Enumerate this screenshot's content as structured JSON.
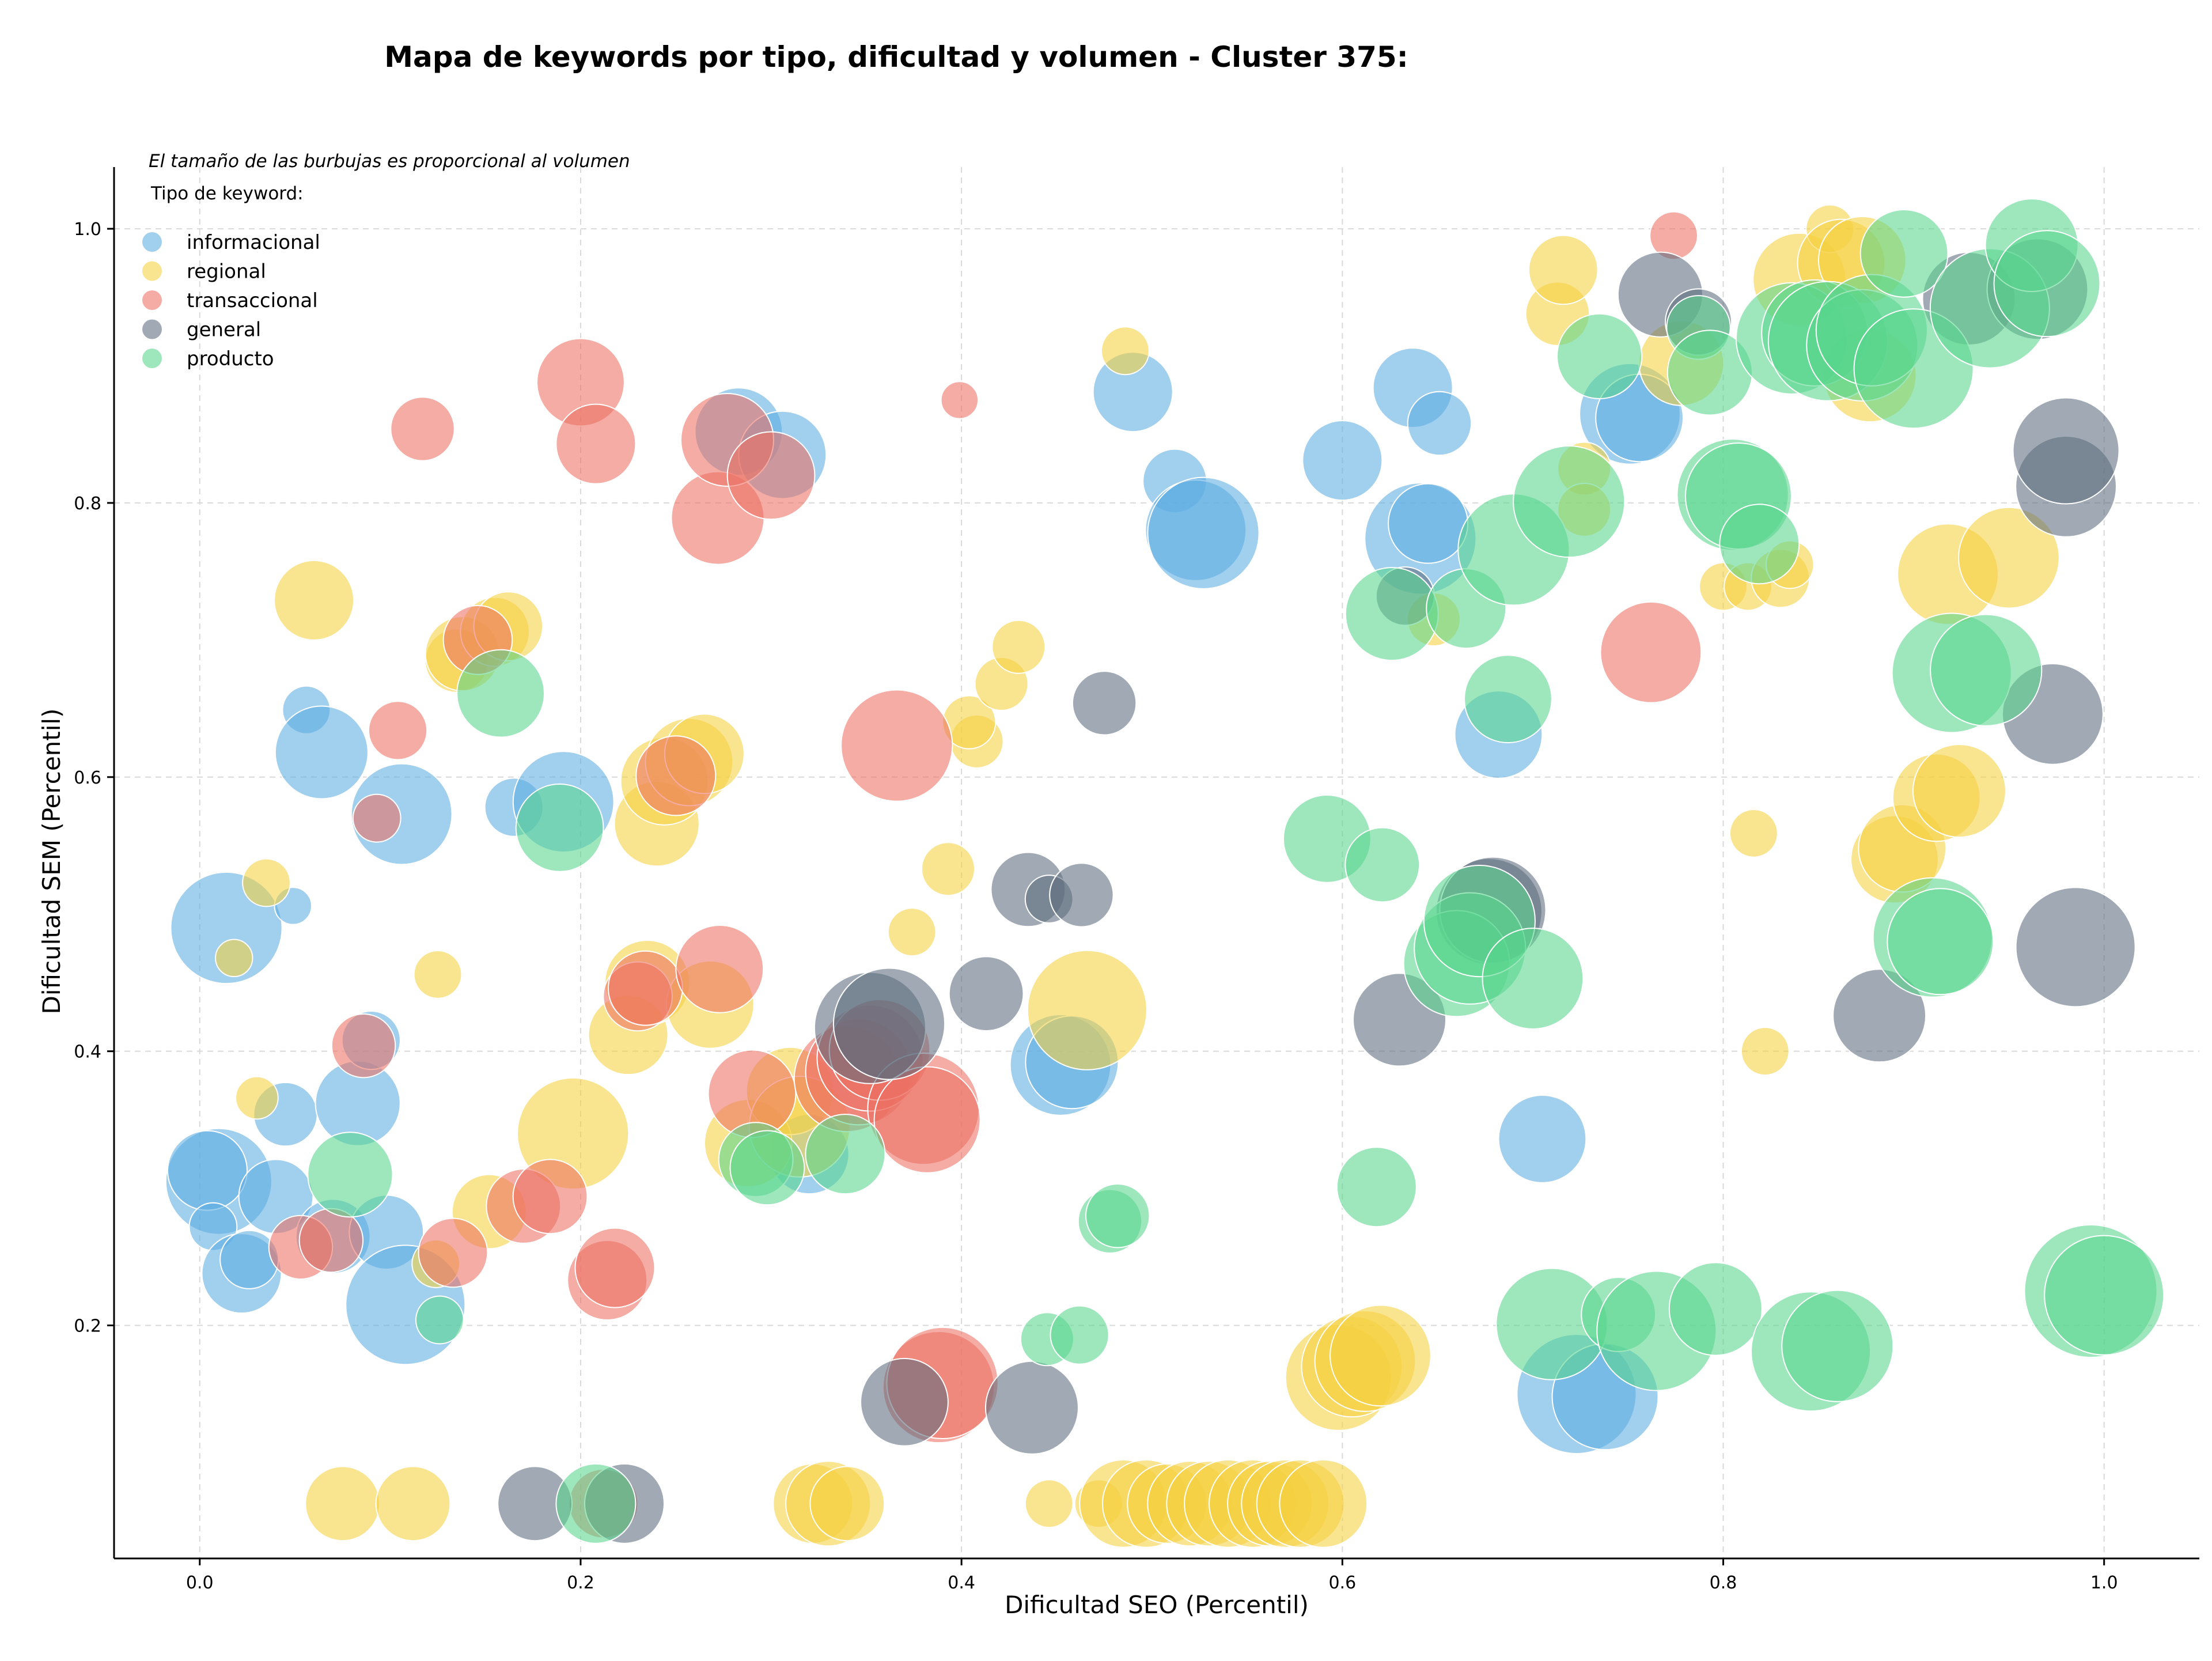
{
  "chart_data": {
    "type": "scatter",
    "title": "Mapa de keywords por tipo, dificultad y volumen - Cluster 375:",
    "xlabel": "Dificultad SEO (Percentil)",
    "ylabel": "Dificultad SEM (Percentil)",
    "xlim": [
      -0.045,
      1.05
    ],
    "ylim": [
      0.03,
      1.045
    ],
    "xticks": [
      0.0,
      0.2,
      0.4,
      0.6,
      0.8,
      1.0
    ],
    "yticks": [
      0.2,
      0.4,
      0.6,
      0.8,
      1.0
    ],
    "xtick_labels": [
      "0.0",
      "0.2",
      "0.4",
      "0.6",
      "0.8",
      "1.0"
    ],
    "ytick_labels": [
      "0.2",
      "0.4",
      "0.6",
      "0.8",
      "1.0"
    ],
    "grid": true,
    "legend": {
      "placement": "top-left",
      "note": "El tamaño de las burbujas es proporcional al volumen",
      "title": "Tipo de keyword:"
    },
    "series": [
      {
        "name": "informacional",
        "color": "#5DADE2",
        "points": [
          [
            0.014,
            0.49,
            42
          ],
          [
            0.01,
            0.305,
            40
          ],
          [
            0.004,
            0.313,
            30
          ],
          [
            0.007,
            0.272,
            18
          ],
          [
            0.022,
            0.238,
            30
          ],
          [
            0.026,
            0.248,
            22
          ],
          [
            0.04,
            0.294,
            28
          ],
          [
            0.045,
            0.354,
            24
          ],
          [
            0.049,
            0.506,
            14
          ],
          [
            0.056,
            0.649,
            18
          ],
          [
            0.064,
            0.618,
            35
          ],
          [
            0.07,
            0.265,
            28
          ],
          [
            0.083,
            0.362,
            32
          ],
          [
            0.09,
            0.408,
            22
          ],
          [
            0.098,
            0.268,
            28
          ],
          [
            0.108,
            0.215,
            45
          ],
          [
            0.106,
            0.573,
            38
          ],
          [
            0.165,
            0.578,
            22
          ],
          [
            0.191,
            0.582,
            38
          ],
          [
            0.283,
            0.852,
            33
          ],
          [
            0.306,
            0.835,
            33
          ],
          [
            0.32,
            0.325,
            30
          ],
          [
            0.452,
            0.39,
            38
          ],
          [
            0.458,
            0.392,
            35
          ],
          [
            0.49,
            0.881,
            30
          ],
          [
            0.512,
            0.816,
            24
          ],
          [
            0.523,
            0.78,
            38
          ],
          [
            0.527,
            0.778,
            42
          ],
          [
            0.6,
            0.831,
            30
          ],
          [
            0.637,
            0.884,
            30
          ],
          [
            0.651,
            0.858,
            24
          ],
          [
            0.641,
            0.774,
            42
          ],
          [
            0.645,
            0.785,
            30
          ],
          [
            0.682,
            0.631,
            33
          ],
          [
            0.705,
            0.336,
            33
          ],
          [
            0.723,
            0.15,
            45
          ],
          [
            0.738,
            0.148,
            40
          ],
          [
            0.751,
            0.865,
            38
          ],
          [
            0.756,
            0.862,
            33
          ]
        ]
      },
      {
        "name": "regional",
        "color": "#F4D03F",
        "points": [
          [
            0.018,
            0.468,
            14
          ],
          [
            0.03,
            0.366,
            16
          ],
          [
            0.035,
            0.523,
            18
          ],
          [
            0.06,
            0.729,
            30
          ],
          [
            0.075,
            0.07,
            28
          ],
          [
            0.112,
            0.07,
            28
          ],
          [
            0.124,
            0.245,
            18
          ],
          [
            0.125,
            0.456,
            18
          ],
          [
            0.135,
            0.685,
            24
          ],
          [
            0.138,
            0.69,
            28
          ],
          [
            0.152,
            0.283,
            28
          ],
          [
            0.155,
            0.706,
            26
          ],
          [
            0.162,
            0.71,
            26
          ],
          [
            0.196,
            0.34,
            42
          ],
          [
            0.225,
            0.412,
            30
          ],
          [
            0.235,
            0.45,
            32
          ],
          [
            0.24,
            0.566,
            32
          ],
          [
            0.244,
            0.597,
            33
          ],
          [
            0.257,
            0.611,
            33
          ],
          [
            0.265,
            0.617,
            30
          ],
          [
            0.268,
            0.434,
            33
          ],
          [
            0.288,
            0.333,
            33
          ],
          [
            0.31,
            0.371,
            33
          ],
          [
            0.315,
            0.345,
            38
          ],
          [
            0.322,
            0.07,
            30
          ],
          [
            0.33,
            0.07,
            32
          ],
          [
            0.34,
            0.07,
            28
          ],
          [
            0.393,
            0.533,
            20
          ],
          [
            0.374,
            0.487,
            18
          ],
          [
            0.408,
            0.626,
            20
          ],
          [
            0.404,
            0.64,
            20
          ],
          [
            0.421,
            0.668,
            20
          ],
          [
            0.43,
            0.695,
            20
          ],
          [
            0.446,
            0.07,
            18
          ],
          [
            0.466,
            0.43,
            45
          ],
          [
            0.472,
            0.07,
            18
          ],
          [
            0.486,
            0.911,
            18
          ],
          [
            0.485,
            0.07,
            33
          ],
          [
            0.497,
            0.07,
            33
          ],
          [
            0.508,
            0.07,
            30
          ],
          [
            0.52,
            0.07,
            32
          ],
          [
            0.53,
            0.07,
            32
          ],
          [
            0.54,
            0.07,
            33
          ],
          [
            0.553,
            0.07,
            33
          ],
          [
            0.562,
            0.07,
            32
          ],
          [
            0.57,
            0.07,
            33
          ],
          [
            0.578,
            0.07,
            33
          ],
          [
            0.59,
            0.07,
            33
          ],
          [
            0.598,
            0.162,
            40
          ],
          [
            0.605,
            0.17,
            38
          ],
          [
            0.612,
            0.174,
            38
          ],
          [
            0.62,
            0.178,
            38
          ],
          [
            0.648,
            0.715,
            20
          ],
          [
            0.713,
            0.938,
            24
          ],
          [
            0.716,
            0.97,
            26
          ],
          [
            0.727,
            0.825,
            20
          ],
          [
            0.727,
            0.795,
            20
          ],
          [
            0.778,
            0.902,
            32
          ],
          [
            0.8,
            0.739,
            18
          ],
          [
            0.813,
            0.739,
            18
          ],
          [
            0.816,
            0.559,
            18
          ],
          [
            0.822,
            0.4,
            18
          ],
          [
            0.83,
            0.745,
            22
          ],
          [
            0.835,
            0.755,
            18
          ],
          [
            0.84,
            0.963,
            35
          ],
          [
            0.856,
            1.0,
            18
          ],
          [
            0.862,
            0.975,
            33
          ],
          [
            0.873,
            0.977,
            33
          ],
          [
            0.877,
            0.893,
            35
          ],
          [
            0.89,
            0.54,
            33
          ],
          [
            0.894,
            0.548,
            33
          ],
          [
            0.912,
            0.585,
            33
          ],
          [
            0.924,
            0.59,
            35
          ],
          [
            0.918,
            0.748,
            38
          ],
          [
            0.95,
            0.76,
            38
          ]
        ]
      },
      {
        "name": "transaccional",
        "color": "#EC7063",
        "points": [
          [
            0.053,
            0.257,
            24
          ],
          [
            0.069,
            0.262,
            24
          ],
          [
            0.086,
            0.404,
            24
          ],
          [
            0.093,
            0.57,
            18
          ],
          [
            0.104,
            0.634,
            22
          ],
          [
            0.117,
            0.854,
            24
          ],
          [
            0.133,
            0.253,
            26
          ],
          [
            0.146,
            0.7,
            26
          ],
          [
            0.17,
            0.287,
            28
          ],
          [
            0.184,
            0.294,
            28
          ],
          [
            0.2,
            0.888,
            33
          ],
          [
            0.208,
            0.843,
            30
          ],
          [
            0.212,
            0.07,
            26
          ],
          [
            0.214,
            0.233,
            30
          ],
          [
            0.218,
            0.242,
            30
          ],
          [
            0.23,
            0.44,
            26
          ],
          [
            0.234,
            0.446,
            28
          ],
          [
            0.25,
            0.601,
            30
          ],
          [
            0.273,
            0.46,
            33
          ],
          [
            0.272,
            0.789,
            35
          ],
          [
            0.277,
            0.846,
            35
          ],
          [
            0.3,
            0.82,
            33
          ],
          [
            0.29,
            0.369,
            33
          ],
          [
            0.34,
            0.38,
            40
          ],
          [
            0.346,
            0.385,
            40
          ],
          [
            0.352,
            0.395,
            40
          ],
          [
            0.357,
            0.401,
            38
          ],
          [
            0.366,
            0.623,
            42
          ],
          [
            0.38,
            0.358,
            42
          ],
          [
            0.382,
            0.35,
            40
          ],
          [
            0.388,
            0.155,
            42
          ],
          [
            0.39,
            0.158,
            42
          ],
          [
            0.399,
            0.875,
            14
          ],
          [
            0.762,
            0.691,
            38
          ],
          [
            0.774,
            0.995,
            18
          ]
        ]
      },
      {
        "name": "general",
        "color": "#5D6D7E",
        "points": [
          [
            0.176,
            0.07,
            28
          ],
          [
            0.223,
            0.07,
            30
          ],
          [
            0.352,
            0.417,
            42
          ],
          [
            0.362,
            0.42,
            42
          ],
          [
            0.37,
            0.144,
            33
          ],
          [
            0.413,
            0.442,
            28
          ],
          [
            0.437,
            0.14,
            35
          ],
          [
            0.435,
            0.518,
            28
          ],
          [
            0.446,
            0.511,
            18
          ],
          [
            0.463,
            0.514,
            24
          ],
          [
            0.475,
            0.654,
            24
          ],
          [
            0.63,
            0.423,
            35
          ],
          [
            0.633,
            0.732,
            22
          ],
          [
            0.677,
            0.502,
            40
          ],
          [
            0.679,
            0.503,
            40
          ],
          [
            0.767,
            0.952,
            32
          ],
          [
            0.787,
            0.932,
            25
          ],
          [
            0.882,
            0.426,
            35
          ],
          [
            0.929,
            0.949,
            35
          ],
          [
            0.965,
            0.956,
            38
          ],
          [
            0.973,
            0.646,
            38
          ],
          [
            0.98,
            0.812,
            38
          ],
          [
            0.98,
            0.838,
            40
          ],
          [
            0.985,
            0.476,
            45
          ]
        ]
      },
      {
        "name": "producto",
        "color": "#58D68D",
        "points": [
          [
            0.079,
            0.31,
            32
          ],
          [
            0.126,
            0.204,
            18
          ],
          [
            0.158,
            0.661,
            33
          ],
          [
            0.189,
            0.563,
            33
          ],
          [
            0.208,
            0.07,
            30
          ],
          [
            0.292,
            0.321,
            28
          ],
          [
            0.298,
            0.315,
            28
          ],
          [
            0.339,
            0.325,
            30
          ],
          [
            0.445,
            0.19,
            20
          ],
          [
            0.462,
            0.193,
            22
          ],
          [
            0.478,
            0.276,
            24
          ],
          [
            0.482,
            0.28,
            24
          ],
          [
            0.592,
            0.555,
            33
          ],
          [
            0.618,
            0.301,
            30
          ],
          [
            0.621,
            0.536,
            28
          ],
          [
            0.626,
            0.719,
            35
          ],
          [
            0.665,
            0.723,
            30
          ],
          [
            0.66,
            0.464,
            40
          ],
          [
            0.667,
            0.475,
            42
          ],
          [
            0.672,
            0.495,
            42
          ],
          [
            0.687,
            0.657,
            33
          ],
          [
            0.7,
            0.453,
            38
          ],
          [
            0.69,
            0.766,
            42
          ],
          [
            0.719,
            0.801,
            42
          ],
          [
            0.735,
            0.907,
            32
          ],
          [
            0.71,
            0.201,
            42
          ],
          [
            0.745,
            0.208,
            28
          ],
          [
            0.765,
            0.196,
            45
          ],
          [
            0.787,
            0.928,
            24
          ],
          [
            0.793,
            0.895,
            32
          ],
          [
            0.796,
            0.212,
            35
          ],
          [
            0.805,
            0.806,
            42
          ],
          [
            0.808,
            0.805,
            40
          ],
          [
            0.819,
            0.77,
            30
          ],
          [
            0.836,
            0.92,
            42
          ],
          [
            0.846,
            0.181,
            45
          ],
          [
            0.848,
            0.924,
            40
          ],
          [
            0.855,
            0.918,
            45
          ],
          [
            0.86,
            0.185,
            42
          ],
          [
            0.873,
            0.915,
            42
          ],
          [
            0.878,
            0.926,
            42
          ],
          [
            0.9,
            0.898,
            45
          ],
          [
            0.895,
            0.982,
            33
          ],
          [
            0.91,
            0.483,
            45
          ],
          [
            0.914,
            0.48,
            40
          ],
          [
            0.92,
            0.676,
            45
          ],
          [
            0.938,
            0.678,
            42
          ],
          [
            0.94,
            0.942,
            45
          ],
          [
            0.962,
            0.988,
            35
          ],
          [
            0.97,
            0.96,
            40
          ],
          [
            0.993,
            0.225,
            50
          ],
          [
            1.0,
            0.222,
            45
          ]
        ]
      }
    ]
  }
}
